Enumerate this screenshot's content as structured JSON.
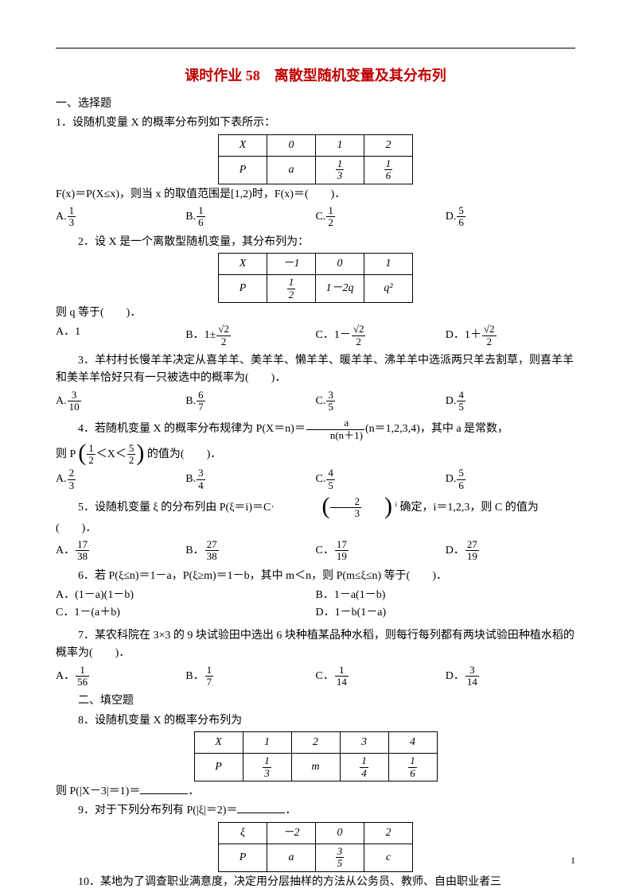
{
  "title": "课时作业 58　离散型随机变量及其分布列",
  "sections": {
    "s1": "一、选择题",
    "s2": "二、填空题"
  },
  "q1": {
    "text": "1．设随机变量 X 的概率分布列如下表所示：",
    "table": {
      "headers": [
        "X",
        "0",
        "1",
        "2"
      ],
      "row2_label": "P",
      "row2": [
        "a",
        {
          "n": "1",
          "d": "3"
        },
        {
          "n": "1",
          "d": "6"
        }
      ]
    },
    "line2_a": "F(x)＝P(X≤x)，则当 x 的取值范围是[1,2)时，F(x)＝(　　)．",
    "opts": {
      "A": {
        "n": "1",
        "d": "3"
      },
      "B": {
        "n": "1",
        "d": "6"
      },
      "C": {
        "n": "1",
        "d": "2"
      },
      "D": {
        "n": "5",
        "d": "6"
      }
    }
  },
  "q2": {
    "text": "2．设 X 是一个离散型随机变量，其分布列为：",
    "table": {
      "headers": [
        "X",
        "－1",
        "0",
        "1"
      ],
      "row2_label": "P",
      "row2": [
        {
          "n": "1",
          "d": "2"
        },
        "1－2q",
        "q²"
      ]
    },
    "line2": "则 q 等于(　　)．",
    "opts": {
      "A": "1",
      "B_pre": "1±",
      "B_frac": {
        "n": "√2",
        "d": "2"
      },
      "C_pre": "1－",
      "C_frac": {
        "n": "√2",
        "d": "2"
      },
      "D_pre": "1＋",
      "D_frac": {
        "n": "√2",
        "d": "2"
      }
    }
  },
  "q3": {
    "text": "3．羊村村长慢羊羊决定从喜羊羊、美羊羊、懒羊羊、暖羊羊、沸羊羊中选派两只羊去割草，则喜羊羊和美羊羊恰好只有一只被选中的概率为(　　)．",
    "opts": {
      "A": {
        "n": "3",
        "d": "10"
      },
      "B": {
        "n": "6",
        "d": "7"
      },
      "C": {
        "n": "3",
        "d": "5"
      },
      "D": {
        "n": "4",
        "d": "5"
      }
    }
  },
  "q4": {
    "text_a": "4．若随机变量 X 的概率分布规律为 P(X＝n)＝",
    "frac1": {
      "n": "a",
      "d": "n(n＋1)"
    },
    "text_b": "(n＝1,2,3,4)，其中 a 是常数，",
    "line2_a": "则 P",
    "bracket": {
      "n1": "1",
      "d1": "2",
      "mid": "＜X＜",
      "n2": "5",
      "d2": "2"
    },
    "line2_b": "的值为(　　)．",
    "opts": {
      "A": {
        "n": "2",
        "d": "3"
      },
      "B": {
        "n": "3",
        "d": "4"
      },
      "C": {
        "n": "4",
        "d": "5"
      },
      "D": {
        "n": "5",
        "d": "6"
      }
    }
  },
  "q5": {
    "text_a": "5．设随机变量 ξ 的分布列由 P(ξ＝i)＝C·",
    "bracket": {
      "n": "2",
      "d": "3"
    },
    "text_b": "ⁱ 确定，i＝1,2,3，则 C 的值为(　　)．",
    "opts": {
      "A": {
        "n": "17",
        "d": "38"
      },
      "B": {
        "n": "27",
        "d": "38"
      },
      "C": {
        "n": "17",
        "d": "19"
      },
      "D": {
        "n": "27",
        "d": "19"
      }
    }
  },
  "q6": {
    "text": "6．若 P(ξ≤n)＝1－a，P(ξ≥m)＝1－b，其中 m＜n，则 P(m≤ξ≤n) 等于(　　)．",
    "opts": {
      "A": "(1－a)(1－b)",
      "B": "1－a(1－b)",
      "C": "1－(a＋b)",
      "D": "1－b(1－a)"
    }
  },
  "q7": {
    "text": "7．某农科院在 3×3 的 9 块试验田中选出 6 块种植某品种水稻，则每行每列都有两块试验田种植水稻的概率为(　　)．",
    "opts": {
      "A": {
        "n": "1",
        "d": "56"
      },
      "B": {
        "n": "1",
        "d": "7"
      },
      "C": {
        "n": "1",
        "d": "14"
      },
      "D": {
        "n": "3",
        "d": "14"
      }
    }
  },
  "q8": {
    "text": "8．设随机变量 X 的概率分布列为",
    "table": {
      "headers": [
        "X",
        "1",
        "2",
        "3",
        "4"
      ],
      "row2_label": "P",
      "row2": [
        {
          "n": "1",
          "d": "3"
        },
        "m",
        {
          "n": "1",
          "d": "4"
        },
        {
          "n": "1",
          "d": "6"
        }
      ]
    },
    "line2": "则 P(|X－3|＝1)＝",
    "tail": "．"
  },
  "q9": {
    "text": "9．对于下列分布列有 P(|ξ|＝2)＝",
    "tail": "．",
    "table": {
      "headers": [
        "ξ",
        "－2",
        "0",
        "2"
      ],
      "row2_label": "P",
      "row2": [
        "a",
        {
          "n": "3",
          "d": "5"
        },
        "c"
      ]
    }
  },
  "q10": {
    "text": "10．某地为了调查职业满意度，决定用分层抽样的方法从公务员、教师、自由职业者三"
  },
  "page_num": "1"
}
